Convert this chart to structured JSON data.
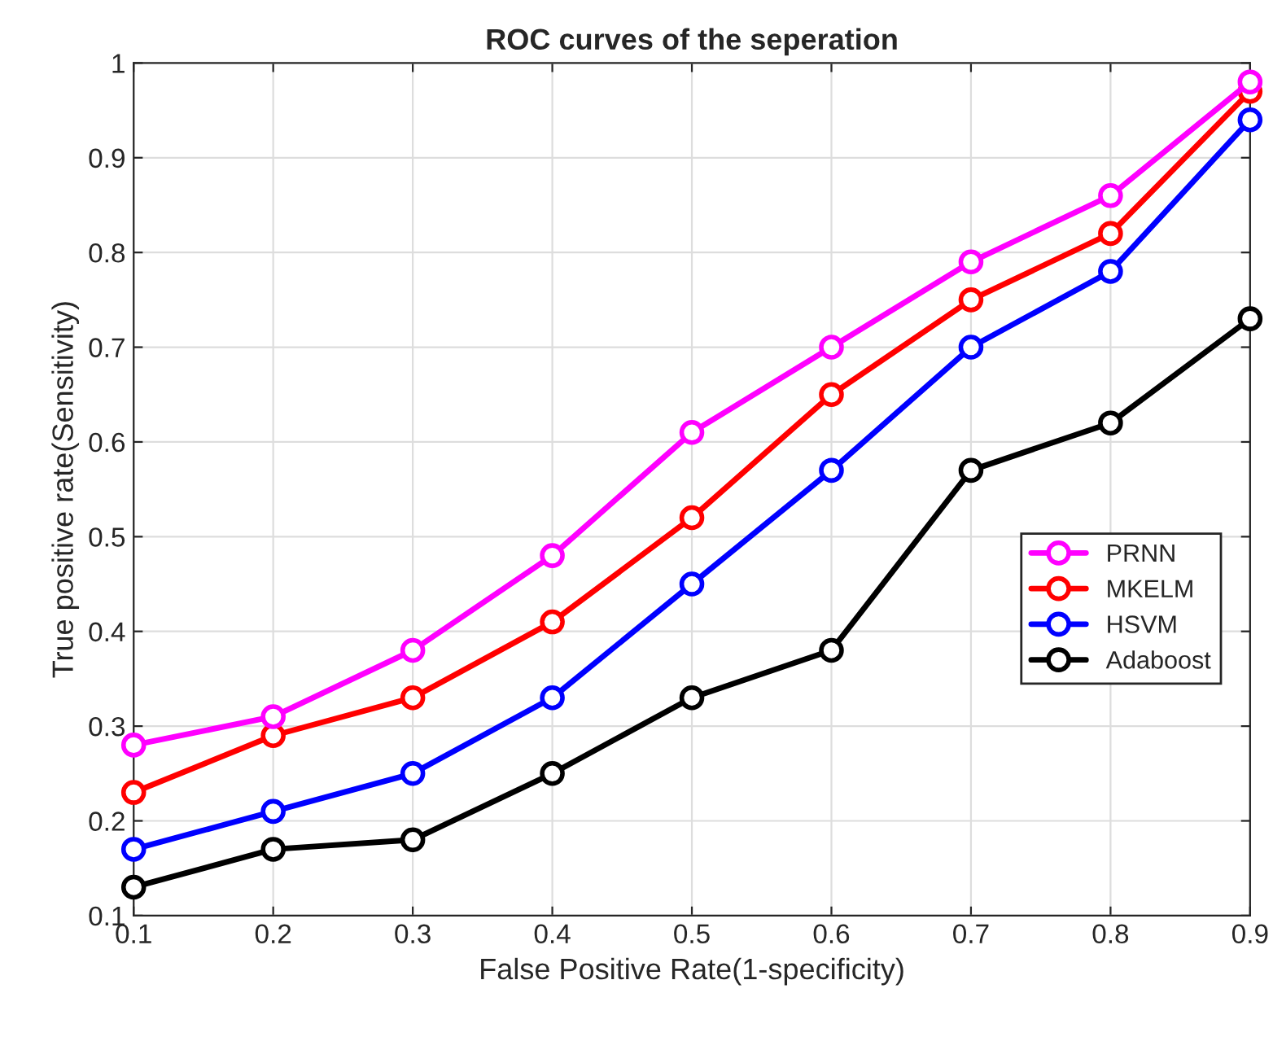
{
  "chart_data": {
    "type": "line",
    "title": "ROC curves of the seperation",
    "xlabel": "False Positive Rate(1-specificity)",
    "ylabel": "True positive rate(Sensitivity)",
    "x": [
      0.1,
      0.2,
      0.3,
      0.4,
      0.5,
      0.6,
      0.7,
      0.8,
      0.9
    ],
    "series": [
      {
        "name": "PRNN",
        "color": "#ff00ff",
        "values": [
          0.28,
          0.31,
          0.38,
          0.48,
          0.61,
          0.7,
          0.79,
          0.86,
          0.98
        ]
      },
      {
        "name": "MKELM",
        "color": "#ff0000",
        "values": [
          0.23,
          0.29,
          0.33,
          0.41,
          0.52,
          0.65,
          0.75,
          0.82,
          0.97
        ]
      },
      {
        "name": "HSVM",
        "color": "#0000ff",
        "values": [
          0.17,
          0.21,
          0.25,
          0.33,
          0.45,
          0.57,
          0.7,
          0.78,
          0.94
        ]
      },
      {
        "name": "Adaboost",
        "color": "#000000",
        "values": [
          0.13,
          0.17,
          0.18,
          0.25,
          0.33,
          0.38,
          0.57,
          0.62,
          0.73
        ]
      }
    ],
    "xlim": [
      0.1,
      0.9
    ],
    "xticks": [
      0.1,
      0.2,
      0.3,
      0.4,
      0.5,
      0.6,
      0.7,
      0.8,
      0.9
    ],
    "ylim": [
      0.1,
      1
    ],
    "yticks": [
      0.1,
      0.2,
      0.3,
      0.4,
      0.5,
      0.6,
      0.7,
      0.8,
      0.9,
      1
    ],
    "grid": true,
    "legend": "right",
    "marker": "circle",
    "line_style": "solid"
  }
}
